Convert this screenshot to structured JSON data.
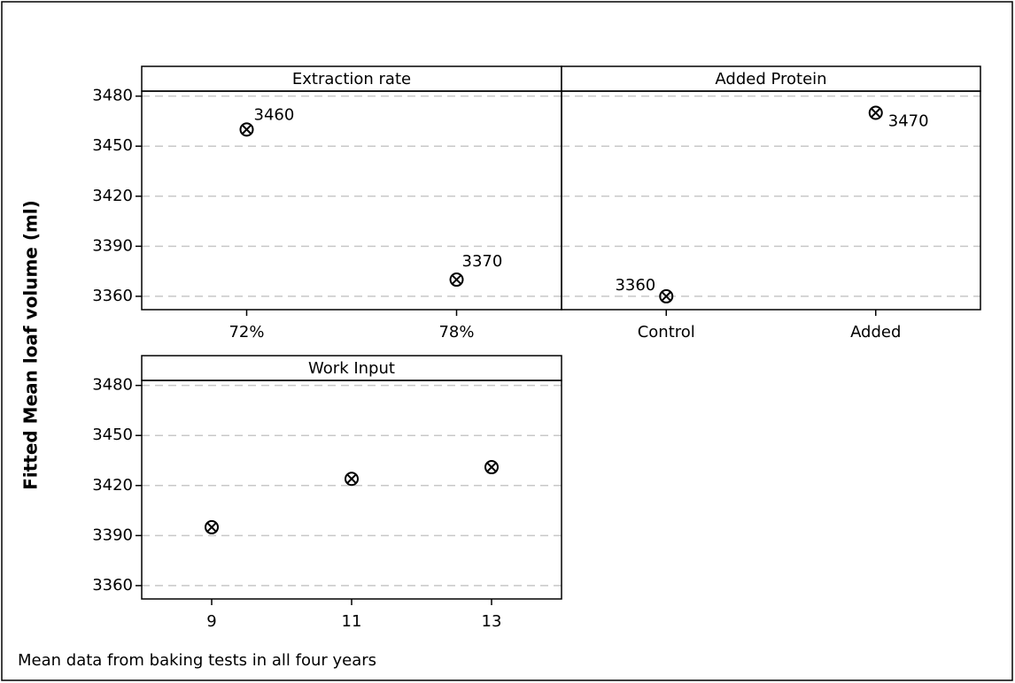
{
  "ylabel": "Fitted Mean loaf volume (ml)",
  "footnote": "Mean data from baking tests in all four years",
  "chart_data": [
    {
      "type": "scatter",
      "title": "Extraction rate",
      "categories": [
        "72%",
        "78%"
      ],
      "values": [
        3460,
        3370
      ],
      "value_labels": [
        "3460",
        "3370"
      ],
      "ylim": [
        3352,
        3483
      ],
      "yticks": [
        3360,
        3390,
        3420,
        3450,
        3480
      ],
      "grid": true,
      "color": "#000000"
    },
    {
      "type": "scatter",
      "title": "Added Protein",
      "categories": [
        "Control",
        "Added"
      ],
      "values": [
        3360,
        3470
      ],
      "value_labels": [
        "3360",
        "3470"
      ],
      "ylim": [
        3352,
        3483
      ],
      "yticks": [
        3360,
        3390,
        3420,
        3450,
        3480
      ],
      "grid": true,
      "color": "#000000"
    },
    {
      "type": "scatter",
      "title": "Work Input",
      "x": [
        9,
        11,
        13
      ],
      "values": [
        3395,
        3424,
        3431
      ],
      "xlim": [
        8,
        14
      ],
      "xticks": [
        9,
        11,
        13
      ],
      "ylim": [
        3352,
        3483
      ],
      "yticks": [
        3360,
        3390,
        3420,
        3450,
        3480
      ],
      "grid": true,
      "color": "#000000"
    }
  ]
}
